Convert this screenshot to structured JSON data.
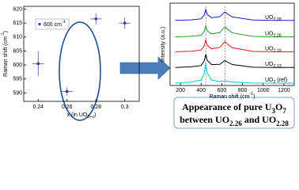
{
  "chart_data": [
    {
      "type": "scatter",
      "x_label": [
        "x (in UO",
        "2+x",
        ")"
      ],
      "y_label": [
        "Raman shift (cm",
        "-1",
        ")"
      ],
      "legend_label": [
        "600 cm",
        "-1"
      ],
      "series": [
        {
          "color": "#3a3aa0",
          "x": [
            0.24,
            0.26,
            0.28,
            0.3
          ],
          "values": [
            600.5,
            590.5,
            616.5,
            615
          ],
          "xerr": [
            0.004,
            0.004,
            0.004,
            0.004
          ],
          "yerr": [
            4.5,
            1.5,
            2,
            2
          ]
        }
      ],
      "xlim": [
        0.23,
        0.31
      ],
      "xticks": [
        0.24,
        0.26,
        0.28,
        0.3
      ],
      "ylim": [
        587,
        621
      ],
      "yticks": [
        590,
        595,
        600,
        605,
        610,
        615,
        620
      ]
    },
    {
      "type": "line",
      "x_label": [
        "Raman shift (cm",
        "-1",
        ")"
      ],
      "y_label": "Intensity (a.u.)",
      "x": [
        150,
        300,
        400,
        430,
        445,
        460,
        500,
        580,
        620,
        630,
        640,
        700,
        900,
        1100,
        1300
      ],
      "vlines": [
        445,
        630
      ],
      "series": [
        {
          "label": [
            "UO",
            "2.28"
          ],
          "color": "#1a1ad0",
          "values": [
            8.3,
            8.37,
            8.5,
            9.0,
            9.7,
            9.05,
            8.65,
            8.77,
            9.27,
            9.37,
            9.27,
            8.74,
            8.35,
            8.3,
            8.3
          ]
        },
        {
          "label": [
            "UO",
            "2.26"
          ],
          "color": "#2a9a2a",
          "values": [
            6.2,
            6.27,
            6.4,
            6.91,
            7.62,
            6.97,
            6.58,
            6.75,
            7.35,
            7.47,
            7.35,
            6.72,
            6.26,
            6.2,
            6.2
          ]
        },
        {
          "label": [
            "UO",
            "2.19"
          ],
          "color": "#e01a1a",
          "values": [
            4.3,
            4.37,
            4.51,
            5.06,
            5.82,
            5.12,
            4.69,
            4.85,
            5.45,
            5.57,
            5.45,
            4.82,
            4.36,
            4.3,
            4.3
          ]
        },
        {
          "label": [
            "UO",
            "2.13"
          ],
          "color": "#000000",
          "values": [
            2.3,
            2.38,
            2.54,
            3.14,
            3.98,
            3.18,
            2.66,
            2.7,
            3.1,
            3.18,
            3.1,
            2.67,
            2.34,
            2.3,
            2.3
          ]
        },
        {
          "label": [
            "UO",
            "2",
            " (ref)"
          ],
          "color": "#00c8d8",
          "values": [
            0.3,
            0.43,
            0.68,
            1.56,
            2.82,
            1.57,
            0.7,
            0.49,
            0.57,
            0.58,
            0.56,
            0.44,
            0.31,
            0.3,
            0.3
          ]
        }
      ],
      "xlim": [
        100,
        1300
      ],
      "xticks": [
        200,
        400,
        600,
        800,
        1000,
        1200
      ],
      "ylim": [
        0,
        10.5
      ]
    }
  ],
  "caption": {
    "line1": [
      "Appearance of pure U",
      "3",
      "O",
      "7"
    ],
    "line2": [
      "between UO",
      "2.26",
      " and UO",
      "2.28"
    ]
  }
}
